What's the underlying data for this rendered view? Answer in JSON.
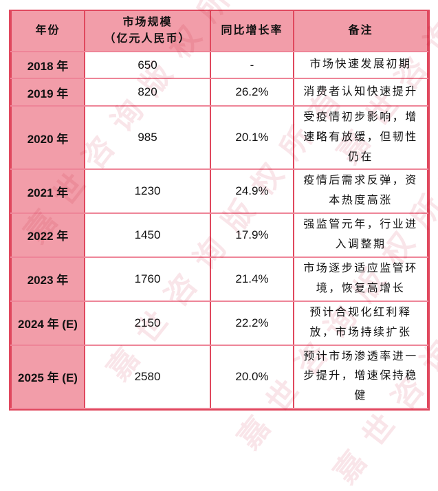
{
  "watermark": {
    "text": "嘉世咨询版权所有"
  },
  "colors": {
    "header_bg": "#F29DA9",
    "year_column_bg": "#F29DA9",
    "grid_vertical_red": "#E0485E",
    "grid_horizontal_pink": "#EE8598",
    "text": "#111111",
    "watermark_pink": "#D85C76"
  },
  "chart_data": {
    "type": "table",
    "header": {
      "year": "年份",
      "size_line1": "市场规模",
      "size_line2": "（亿元人民币）",
      "growth": "同比增长率",
      "note": "备注"
    },
    "rows": [
      {
        "year": "2018 年",
        "size": "650",
        "growth": "-",
        "note": "市场快速发展初期"
      },
      {
        "year": "2019 年",
        "size": "820",
        "growth": "26.2%",
        "note": "消费者认知快速提升"
      },
      {
        "year": "2020 年",
        "size": "985",
        "growth": "20.1%",
        "note": "受疫情初步影响，增速略有放缓，但韧性仍在"
      },
      {
        "year": "2021 年",
        "size": "1230",
        "growth": "24.9%",
        "note": "疫情后需求反弹，资本热度高涨"
      },
      {
        "year": "2022 年",
        "size": "1450",
        "growth": "17.9%",
        "note": "强监管元年，行业进入调整期"
      },
      {
        "year": "2023 年",
        "size": "1760",
        "growth": "21.4%",
        "note": "市场逐步适应监管环境，恢复高增长"
      },
      {
        "year": "2024 年 (E)",
        "size": "2150",
        "growth": "22.2%",
        "note": "预计合规化红利释放，市场持续扩张"
      },
      {
        "year": "2025 年 (E)",
        "size": "2580",
        "growth": "20.0%",
        "note": "预计市场渗透率进一步提升，增速保持稳健"
      }
    ],
    "numeric": {
      "years": [
        "2018",
        "2019",
        "2020",
        "2021",
        "2022",
        "2023",
        "2024E",
        "2025E"
      ],
      "market_size_yi_cny": [
        650,
        820,
        985,
        1230,
        1450,
        1760,
        2150,
        2580
      ],
      "yoy_growth_pct": [
        null,
        26.2,
        20.1,
        24.9,
        17.9,
        21.4,
        22.2,
        20.0
      ]
    }
  }
}
